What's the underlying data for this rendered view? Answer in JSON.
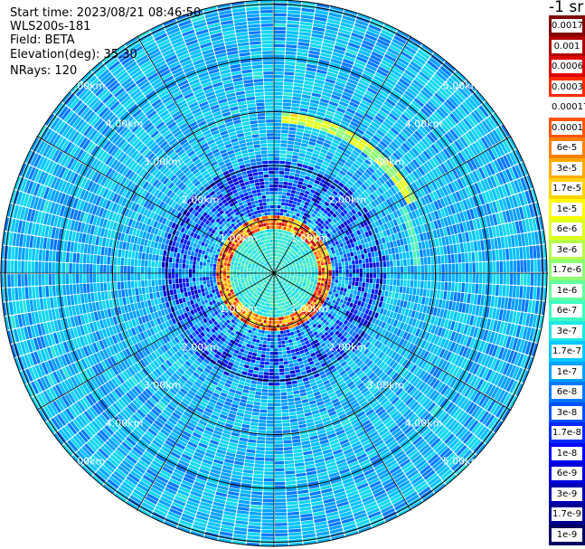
{
  "info": {
    "start_time": "Start time: 2023/08/21 08:46:50",
    "instrument": "WLS200s-181",
    "field": "Field: BETA",
    "elevation": "Elevation(deg): 35.30",
    "nrays": "NRays: 120"
  },
  "range_labels": [
    "1.00km",
    "2.00km",
    "3.00km",
    "4.00km",
    "5.00km"
  ],
  "colorbar": {
    "unit": "-1 sr",
    "labels": [
      "0.0017",
      "0.001",
      "0.0006",
      "0.0003",
      "0.00017",
      "0.0001",
      "6e-5",
      "3e-5",
      "1.7e-5",
      "1e-5",
      "6e-6",
      "3e-6",
      "1.7e-6",
      "1e-6",
      "6e-7",
      "3e-7",
      "1.7e-7",
      "1e-7",
      "6e-8",
      "3e-8",
      "1.7e-8",
      "1e-8",
      "6e-9",
      "3e-9",
      "1.7e-9",
      "1e-9"
    ],
    "colors": [
      "#800000",
      "#b00000",
      "#dd0000",
      "#ff2a00",
      "#ffffff",
      "#ff5500",
      "#ff8000",
      "#ffaa00",
      "#ffd200",
      "#ffff00",
      "#e0ff1e",
      "#b6ff48",
      "#8cff72",
      "#62ff9c",
      "#3effc0",
      "#1ee6e6",
      "#00c8ff",
      "#00a0ff",
      "#0078ff",
      "#0050ff",
      "#0028ff",
      "#0000ff",
      "#0000d8",
      "#0000b0",
      "#000090",
      "#000060"
    ]
  }
}
